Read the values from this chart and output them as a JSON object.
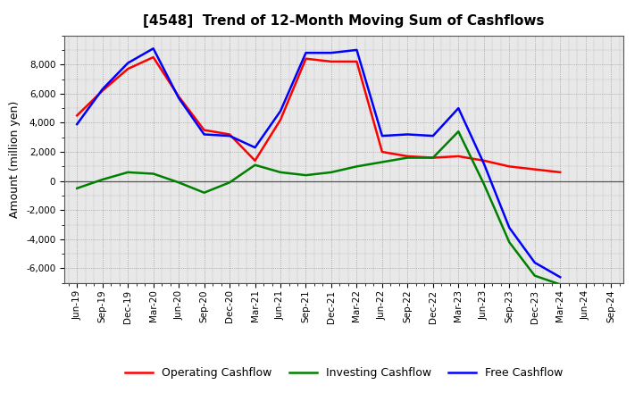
{
  "title": "[4548]  Trend of 12-Month Moving Sum of Cashflows",
  "ylabel": "Amount (million yen)",
  "labels": [
    "Jun-19",
    "Sep-19",
    "Dec-19",
    "Mar-20",
    "Jun-20",
    "Sep-20",
    "Dec-20",
    "Mar-21",
    "Jun-21",
    "Sep-21",
    "Dec-21",
    "Mar-22",
    "Jun-22",
    "Sep-22",
    "Dec-22",
    "Mar-23",
    "Jun-23",
    "Sep-23",
    "Dec-23",
    "Mar-24",
    "Jun-24",
    "Sep-24"
  ],
  "operating": [
    4500,
    6200,
    7700,
    8500,
    5800,
    3500,
    3200,
    1400,
    4200,
    8400,
    8200,
    8200,
    2000,
    1700,
    1600,
    1700,
    1400,
    1000,
    800,
    600,
    null,
    null
  ],
  "investing": [
    -500,
    100,
    600,
    500,
    -100,
    -800,
    -100,
    1100,
    600,
    400,
    600,
    1000,
    1300,
    1600,
    1600,
    3400,
    -200,
    -4200,
    -6500,
    -7100,
    null,
    null
  ],
  "free": [
    3900,
    6300,
    8100,
    9100,
    5700,
    3200,
    3100,
    2300,
    4800,
    8800,
    8800,
    9000,
    3100,
    3200,
    3100,
    5000,
    1200,
    -3200,
    -5600,
    -6600,
    null,
    null
  ],
  "operating_color": "#FF0000",
  "investing_color": "#008000",
  "free_color": "#0000FF",
  "ylim": [
    -7000,
    10000
  ],
  "yticks": [
    -6000,
    -4000,
    -2000,
    0,
    2000,
    4000,
    6000,
    8000
  ],
  "plot_bg_color": "#E8E8E8",
  "background_color": "#FFFFFF",
  "grid_color": "#888888",
  "linewidth": 1.8,
  "title_fontsize": 11,
  "legend_fontsize": 9,
  "tick_fontsize": 7.5,
  "ylabel_fontsize": 9
}
